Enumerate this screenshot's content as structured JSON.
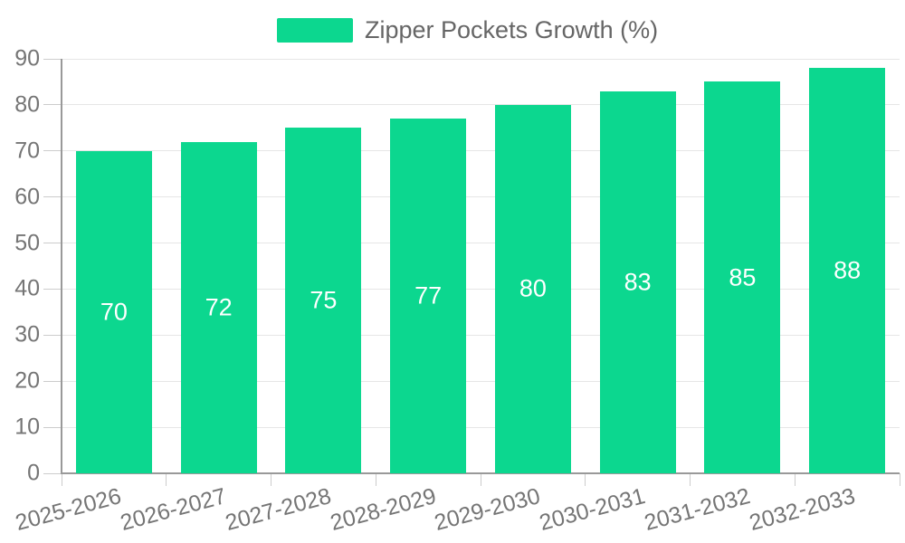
{
  "chart_data": {
    "type": "bar",
    "title": "Zipper Pockets Growth (%)",
    "legend": [
      "Zipper Pockets Growth (%)"
    ],
    "legend_position": "top-center",
    "categories": [
      "2025-2026",
      "2026-2027",
      "2027-2028",
      "2028-2029",
      "2029-2030",
      "2030-2031",
      "2031-2032",
      "2032-2033"
    ],
    "values": [
      70,
      72,
      75,
      77,
      80,
      83,
      85,
      88
    ],
    "xlabel": "",
    "ylabel": "",
    "ylim": [
      0,
      90
    ],
    "ytick_step": 10,
    "yticks": [
      0,
      10,
      20,
      30,
      40,
      50,
      60,
      70,
      80,
      90
    ],
    "grid": true,
    "x_label_rotation_deg": -15,
    "bar_labels_inside": true,
    "colors": {
      "bar": "#0cd78f",
      "bar_value_label": "#ffffff",
      "grid": "#e6e6e6",
      "axis_line": "#999999",
      "tick_line": "#cccccc",
      "axis_text": "#757575",
      "legend_text": "#666666",
      "background": "#ffffff"
    }
  }
}
